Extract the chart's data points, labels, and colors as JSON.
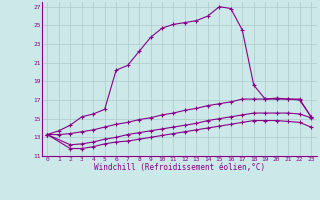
{
  "xlabel": "Windchill (Refroidissement éolien,°C)",
  "background_color": "#cce8e8",
  "line_color": "#880088",
  "grid_color": "#aacccc",
  "xlim": [
    -0.5,
    23.5
  ],
  "ylim": [
    11,
    27.5
  ],
  "yticks": [
    11,
    13,
    15,
    17,
    19,
    21,
    23,
    25,
    27
  ],
  "xticks": [
    0,
    1,
    2,
    3,
    4,
    5,
    6,
    7,
    8,
    9,
    10,
    11,
    12,
    13,
    14,
    15,
    16,
    17,
    18,
    19,
    20,
    21,
    22,
    23
  ],
  "line1_x": [
    0,
    1,
    2,
    3,
    4,
    5,
    6,
    7,
    8,
    9,
    10,
    11,
    12,
    13,
    14,
    15,
    16,
    17,
    18,
    19,
    20,
    21,
    22,
    23
  ],
  "line1_y": [
    13.3,
    13.7,
    14.3,
    15.2,
    15.5,
    16.0,
    20.2,
    20.7,
    22.2,
    23.7,
    24.7,
    25.1,
    25.3,
    25.5,
    26.0,
    27.0,
    26.8,
    24.5,
    18.6,
    17.1,
    17.2,
    17.1,
    17.1,
    15.2
  ],
  "line2_x": [
    0,
    1,
    2,
    3,
    4,
    5,
    6,
    7,
    8,
    9,
    10,
    11,
    12,
    13,
    14,
    15,
    16,
    17,
    18,
    19,
    20,
    21,
    22,
    23
  ],
  "line2_y": [
    13.3,
    13.3,
    13.4,
    13.6,
    13.8,
    14.1,
    14.4,
    14.6,
    14.9,
    15.1,
    15.4,
    15.6,
    15.9,
    16.1,
    16.4,
    16.6,
    16.8,
    17.1,
    17.1,
    17.1,
    17.1,
    17.1,
    17.0,
    15.2
  ],
  "line3_x": [
    0,
    2,
    3,
    4,
    5,
    6,
    7,
    8,
    9,
    10,
    11,
    12,
    13,
    14,
    15,
    16,
    17,
    18,
    19,
    20,
    21,
    22,
    23
  ],
  "line3_y": [
    13.3,
    12.2,
    12.3,
    12.5,
    12.8,
    13.0,
    13.3,
    13.5,
    13.7,
    13.9,
    14.1,
    14.3,
    14.5,
    14.8,
    15.0,
    15.2,
    15.4,
    15.6,
    15.6,
    15.6,
    15.6,
    15.5,
    15.1
  ],
  "line4_x": [
    0,
    2,
    3,
    4,
    5,
    6,
    7,
    8,
    9,
    10,
    11,
    12,
    13,
    14,
    15,
    16,
    17,
    18,
    19,
    20,
    21,
    22,
    23
  ],
  "line4_y": [
    13.3,
    11.8,
    11.8,
    12.0,
    12.3,
    12.5,
    12.6,
    12.8,
    13.0,
    13.2,
    13.4,
    13.6,
    13.8,
    14.0,
    14.2,
    14.4,
    14.6,
    14.8,
    14.8,
    14.8,
    14.7,
    14.6,
    14.1
  ]
}
